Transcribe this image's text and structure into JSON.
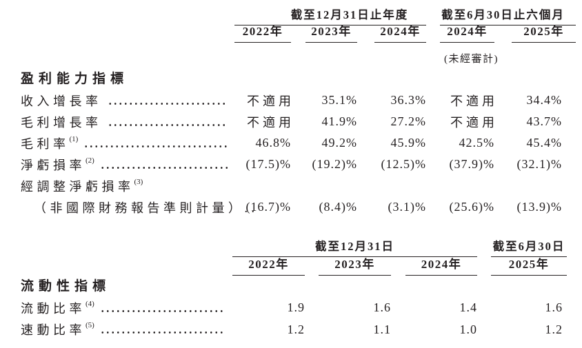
{
  "page": {
    "background": "#ffffff",
    "text_color": "#231f20",
    "rule_color": "#231f20"
  },
  "table1": {
    "group_headers": [
      "截至12月31日止年度",
      "截至6月30日止六個月"
    ],
    "year_headers": [
      "2022年",
      "2023年",
      "2024年",
      "2024年",
      "2025年"
    ],
    "unaudited_note": "(未經審計)",
    "section_title": "盈利能力指標",
    "rows": [
      {
        "label": "收入增長率",
        "sup": "",
        "values": [
          "不適用",
          "35.1%",
          "36.3%",
          "不適用",
          "34.4%"
        ]
      },
      {
        "label": "毛利增長率",
        "sup": "",
        "values": [
          "不適用",
          "41.9%",
          "27.2%",
          "不適用",
          "43.7%"
        ]
      },
      {
        "label": "毛利率",
        "sup": "(1)",
        "values": [
          "46.8%",
          "49.2%",
          "45.9%",
          "42.5%",
          "45.4%"
        ]
      },
      {
        "label": "淨虧損率",
        "sup": "(2)",
        "values": [
          "(17.5)%",
          "(19.2)%",
          "(12.5)%",
          "(37.9)%",
          "(32.1)%"
        ]
      },
      {
        "label": "經調整淨虧損率",
        "sup": "(3)",
        "label_line2": "（非國際財務報告準則計量）..",
        "values": [
          "(16.7)%",
          "(8.4)%",
          "(3.1)%",
          "(25.6)%",
          "(13.9)%"
        ]
      }
    ]
  },
  "table2": {
    "group_headers": [
      "截至12月31日",
      "截至6月30日"
    ],
    "year_headers": [
      "2022年",
      "2023年",
      "2024年",
      "2025年"
    ],
    "section_title": "流動性指標",
    "rows": [
      {
        "label": "流動比率",
        "sup": "(4)",
        "values": [
          "1.9",
          "1.6",
          "1.4",
          "1.6"
        ]
      },
      {
        "label": "速動比率",
        "sup": "(5)",
        "values": [
          "1.2",
          "1.1",
          "1.0",
          "1.2"
        ]
      }
    ]
  }
}
